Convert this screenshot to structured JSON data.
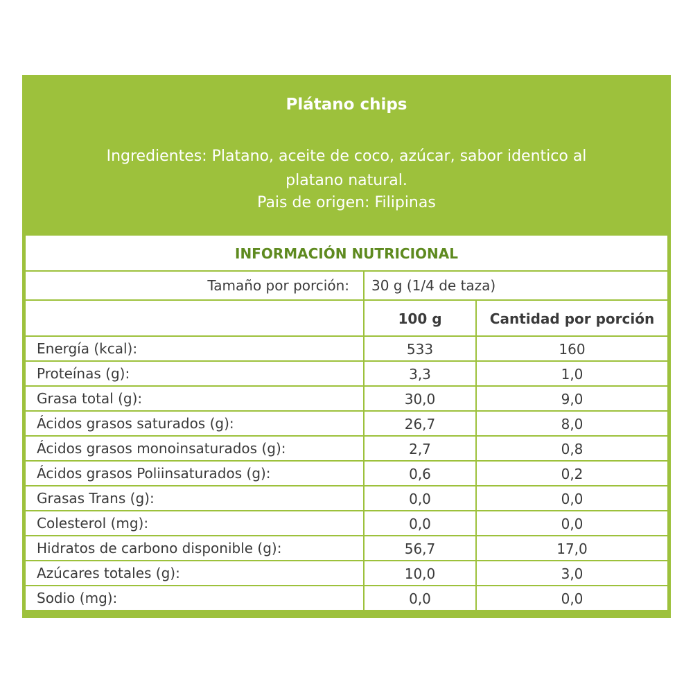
{
  "title": "Plátano chips",
  "ingredients": "Ingredientes: Platano, aceite de coco, azúcar, sabor identico al platano natural.",
  "origin": "Pais de origen: Filipinas",
  "info_heading": "INFORMACIÓN NUTRICIONAL",
  "serving_label": "Tamaño por porción:",
  "serving_value": "30 g (1/4 de taza)",
  "col_100g": "100 g",
  "col_portion": "Cantidad por porción",
  "rows": [
    {
      "name": "Energía (kcal):",
      "per100": "533",
      "portion": "160"
    },
    {
      "name": "Proteínas (g):",
      "per100": "3,3",
      "portion": "1,0"
    },
    {
      "name": "Grasa total (g):",
      "per100": "30,0",
      "portion": "9,0"
    },
    {
      "name": "Ácidos grasos saturados (g):",
      "per100": "26,7",
      "portion": "8,0"
    },
    {
      "name": "Ácidos grasos monoinsaturados (g):",
      "per100": "2,7",
      "portion": "0,8"
    },
    {
      "name": "Ácidos grasos Poliinsaturados (g):",
      "per100": "0,6",
      "portion": "0,2"
    },
    {
      "name": "Grasas Trans (g):",
      "per100": "0,0",
      "portion": "0,0"
    },
    {
      "name": "Colesterol (mg):",
      "per100": "0,0",
      "portion": "0,0"
    },
    {
      "name": "Hidratos de carbono disponible (g):",
      "per100": "56,7",
      "portion": "17,0"
    },
    {
      "name": "Azúcares totales (g):",
      "per100": "10,0",
      "portion": "3,0"
    },
    {
      "name": "Sodio (mg):",
      "per100": "0,0",
      "portion": "0,0"
    }
  ],
  "colors": {
    "green": "#9dc13c",
    "heading_green": "#5e8a1f",
    "text": "#3a3a3a"
  }
}
